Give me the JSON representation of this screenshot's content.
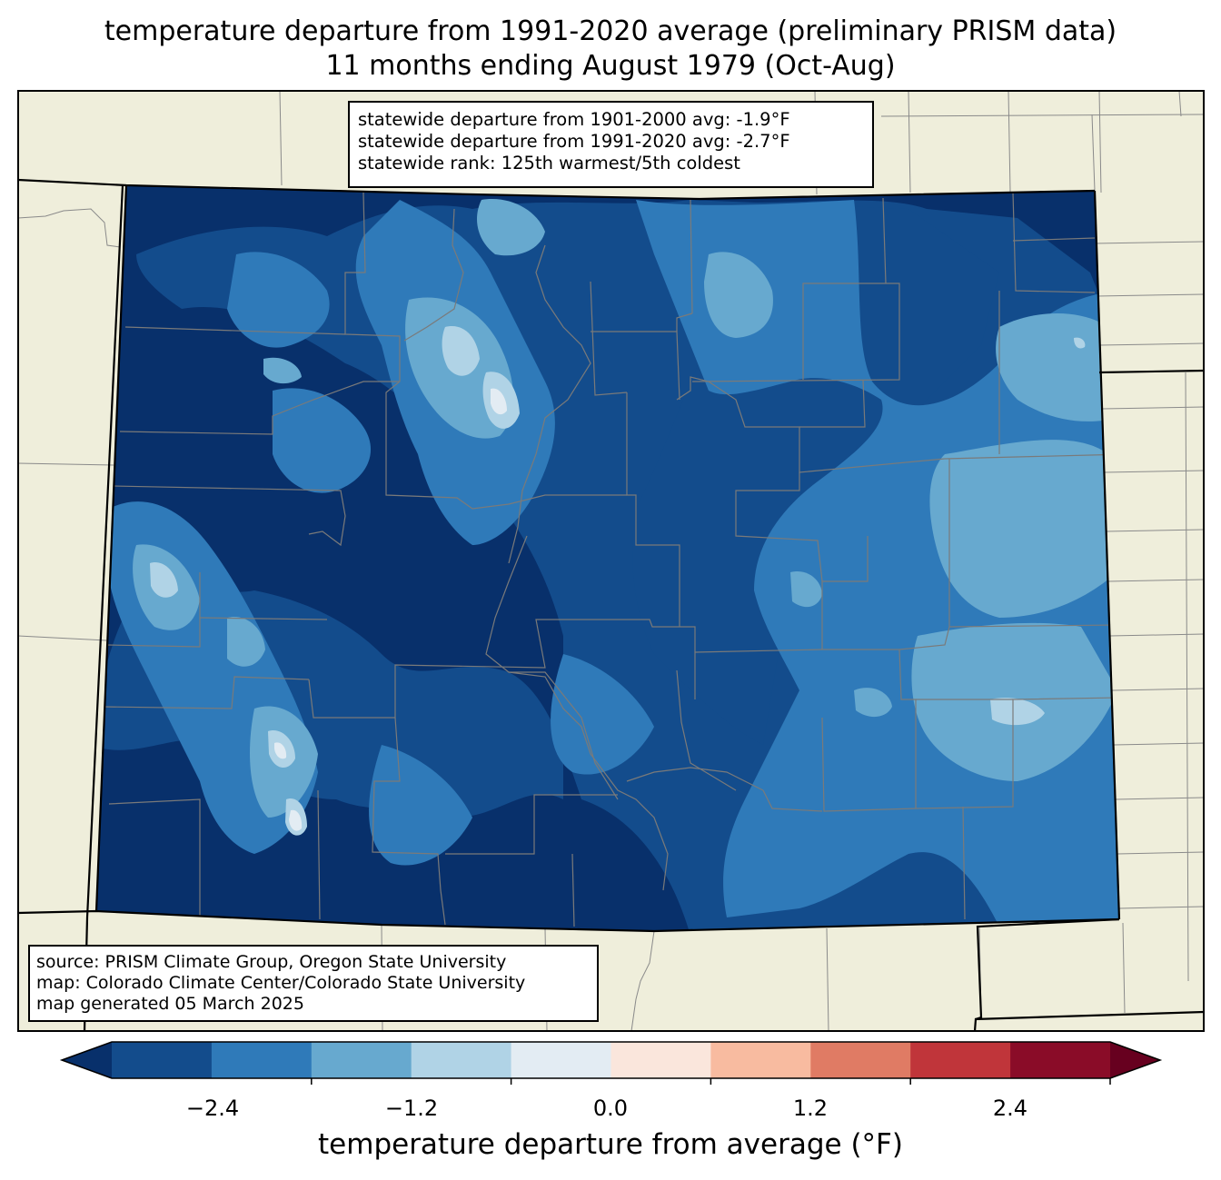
{
  "title": {
    "line1": "temperature departure from 1991-2020 average (preliminary PRISM data)",
    "line2": "11 months ending August 1979 (Oct-Aug)"
  },
  "stats_box": {
    "line1": "statewide departure from 1901-2000 avg: -1.9°F",
    "line2": "statewide departure from 1991-2020 avg: -2.7°F",
    "line3": "statewide rank: 125th warmest/5th coldest"
  },
  "source_box": {
    "line1": "source: PRISM Climate Group, Oregon State University",
    "line2": "map: Colorado Climate Center/Colorado State University",
    "line3": "map generated 05 March 2025"
  },
  "colorbar": {
    "label": "temperature departure from average (°F)",
    "ticks": [
      "−2.4",
      "−1.2",
      "0.0",
      "1.2",
      "2.4"
    ],
    "colors": [
      "#08306b",
      "#134c8c",
      "#2f7ab9",
      "#67a9cf",
      "#b0d3e6",
      "#e3ecf3",
      "#fae6dc",
      "#f8bba0",
      "#e07b64",
      "#c0353a",
      "#8a0c28",
      "#67001f"
    ]
  },
  "colors": {
    "land": "#efeedb",
    "darkest_blue": "#08306b",
    "dark_blue": "#134c8c",
    "mid_blue": "#2f7ab9",
    "light_blue": "#67a9cf",
    "pale_blue": "#b0d3e6",
    "near_zero": "#e3ecf3"
  }
}
